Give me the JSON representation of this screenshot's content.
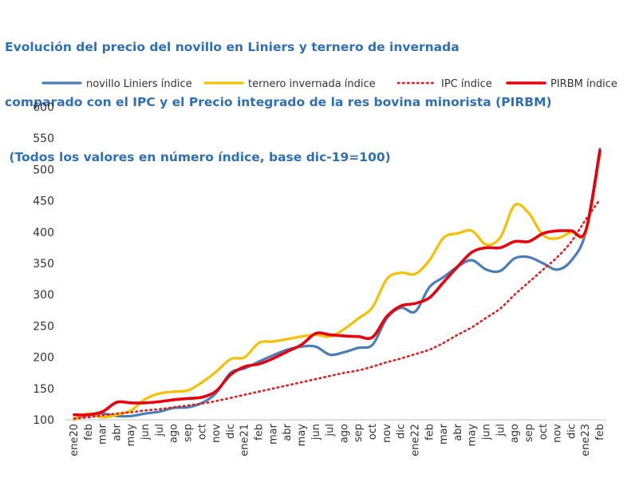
{
  "chart_data": {
    "type": "line",
    "title_lines": [
      "Evolución del precio del novillo en Liniers y ternero de invernada",
      "comparado con el IPC y el Precio integrado de la res bovina minorista (PIRBM)",
      " (Todos los valores en número índice, base dic-19=100)"
    ],
    "categories": [
      "ene20",
      "feb",
      "mar",
      "abr",
      "may",
      "jun",
      "jul",
      "ago",
      "sep",
      "oct",
      "nov",
      "dic",
      "ene21",
      "feb",
      "mar",
      "abr",
      "may",
      "jun",
      "jul",
      "ago",
      "sep",
      "oct",
      "nov",
      "dic",
      "ene22",
      "feb",
      "mar",
      "abr",
      "may",
      "jun",
      "jul",
      "ago",
      "sep",
      "oct",
      "nov",
      "dic",
      "ene23",
      "feb"
    ],
    "ylim": [
      100,
      600
    ],
    "yticks": [
      100,
      150,
      200,
      250,
      300,
      350,
      400,
      450,
      500,
      550,
      600
    ],
    "grid": false,
    "legend_position": "top",
    "series": [
      {
        "name": "novillo Liniers índice",
        "color": "#4a7ebb",
        "style": "solid",
        "values": [
          101,
          108,
          110,
          106,
          106,
          110,
          113,
          119,
          120,
          127,
          143,
          175,
          182,
          193,
          203,
          212,
          217,
          217,
          204,
          208,
          215,
          220,
          262,
          279,
          273,
          312,
          328,
          345,
          355,
          340,
          338,
          358,
          360,
          350,
          340,
          355,
          400,
          533
        ]
      },
      {
        "name": "ternero invernada índice",
        "color": "#f5c000",
        "style": "solid",
        "values": [
          100,
          110,
          104,
          108,
          115,
          133,
          142,
          145,
          147,
          160,
          177,
          197,
          200,
          223,
          225,
          229,
          233,
          236,
          233,
          245,
          262,
          280,
          325,
          335,
          333,
          355,
          391,
          398,
          402,
          380,
          392,
          443,
          430,
          395,
          390,
          400,
          400,
          525
        ]
      },
      {
        "name": "IPC índice",
        "color": "#e41a1c",
        "style": "dotted",
        "values": [
          102,
          104,
          107,
          110,
          112,
          115,
          117,
          120,
          123,
          126,
          130,
          135,
          140,
          145,
          150,
          155,
          160,
          165,
          170,
          175,
          179,
          185,
          192,
          198,
          205,
          212,
          223,
          236,
          248,
          263,
          278,
          300,
          320,
          340,
          360,
          385,
          420,
          452
        ]
      },
      {
        "name": "PIRBM índice",
        "color": "#e8000f",
        "style": "solid",
        "values": [
          108,
          108,
          113,
          128,
          127,
          127,
          129,
          132,
          134,
          136,
          146,
          172,
          185,
          189,
          198,
          209,
          220,
          238,
          236,
          234,
          233,
          232,
          265,
          282,
          286,
          295,
          320,
          345,
          368,
          375,
          375,
          385,
          385,
          398,
          402,
          402,
          402,
          530
        ]
      }
    ]
  }
}
